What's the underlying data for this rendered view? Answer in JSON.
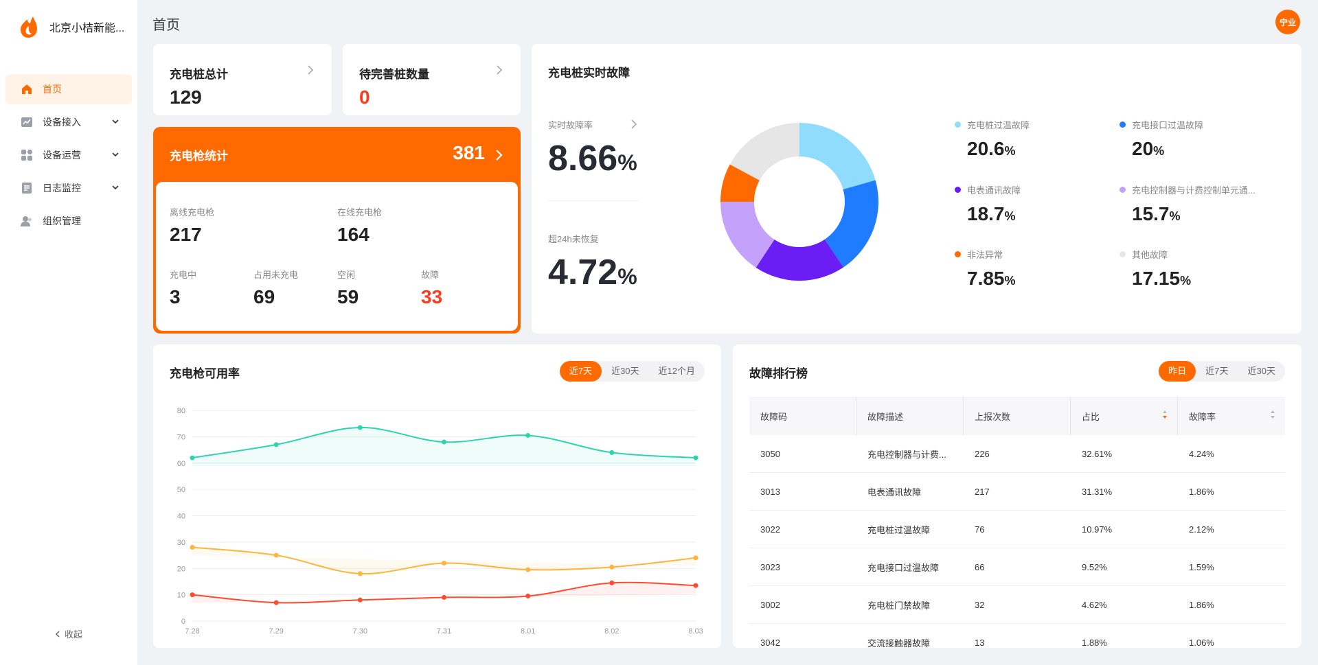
{
  "brand": {
    "name": "北京小桔新能..."
  },
  "sidebar": {
    "items": [
      {
        "label": "首页"
      },
      {
        "label": "设备接入"
      },
      {
        "label": "设备运营"
      },
      {
        "label": "日志监控"
      },
      {
        "label": "组织管理"
      }
    ],
    "collapse_label": "收起"
  },
  "header": {
    "title": "首页",
    "avatar_text": "宁业"
  },
  "pile_total": {
    "label": "充电桩总计",
    "value": "129"
  },
  "pending": {
    "label": "待完善桩数量",
    "value": "0"
  },
  "gun_stats": {
    "title": "充电枪统计",
    "total": "381",
    "offline_label": "离线充电枪",
    "offline_value": "217",
    "online_label": "在线充电枪",
    "online_value": "164",
    "charging_label": "充电中",
    "charging_value": "3",
    "occupied_label": "占用未充电",
    "occupied_value": "69",
    "idle_label": "空闲",
    "idle_value": "59",
    "fault_label": "故障",
    "fault_value": "33"
  },
  "realtime_fault": {
    "title": "充电桩实时故障",
    "rate_label": "实时故障率",
    "rate_value": "8.66",
    "rate_unit": "%",
    "unrecovered_label": "超24h未恢复",
    "unrecovered_value": "4.72",
    "unrecovered_unit": "%",
    "legend": [
      {
        "label": "充电桩过温故障",
        "value": "20.6",
        "unit": "%",
        "color": "#8fdcff"
      },
      {
        "label": "充电接口过温故障",
        "value": "20",
        "unit": "%",
        "color": "#1f7bff"
      },
      {
        "label": "电表通讯故障",
        "value": "18.7",
        "unit": "%",
        "color": "#6a1df5"
      },
      {
        "label": "充电控制器与计费控制单元通...",
        "value": "15.7",
        "unit": "%",
        "color": "#c4a2fb"
      },
      {
        "label": "非法异常",
        "value": "7.85",
        "unit": "%",
        "color": "#ff6a00"
      },
      {
        "label": "其他故障",
        "value": "17.15",
        "unit": "%",
        "color": "#e6e6e6"
      }
    ]
  },
  "availability": {
    "title": "充电枪可用率",
    "tabs": [
      "近7天",
      "近30天",
      "近12个月"
    ],
    "active_tab": 0
  },
  "chart_data": {
    "type": "line",
    "categories": [
      "7.28",
      "7.29",
      "7.30",
      "7.31",
      "8.01",
      "8.02",
      "8.03"
    ],
    "ylim": [
      0,
      80
    ],
    "yticks": [
      "0",
      "10",
      "20",
      "30",
      "40",
      "50",
      "60",
      "70",
      "80"
    ],
    "grid": true,
    "series": [
      {
        "values": [
          62,
          67,
          73.5,
          68,
          70.5,
          64,
          62
        ],
        "color": "#2ed3b0"
      },
      {
        "values": [
          28,
          25,
          18,
          22,
          19.5,
          20.5,
          24
        ],
        "color": "#ffb43a"
      },
      {
        "values": [
          10,
          7,
          8,
          9,
          9.5,
          14.5,
          13.5
        ],
        "color": "#ff4a2e"
      }
    ]
  },
  "ranking": {
    "title": "故障排行榜",
    "tabs": [
      "昨日",
      "近7天",
      "近30天"
    ],
    "active_tab": 0,
    "columns": [
      "故障码",
      "故障描述",
      "上报次数",
      "占比",
      "故障率"
    ],
    "rows": [
      [
        "3050",
        "充电控制器与计费...",
        "226",
        "32.61%",
        "4.24%"
      ],
      [
        "3013",
        "电表通讯故障",
        "217",
        "31.31%",
        "1.86%"
      ],
      [
        "3022",
        "充电桩过温故障",
        "76",
        "10.97%",
        "2.12%"
      ],
      [
        "3023",
        "充电接口过温故障",
        "66",
        "9.52%",
        "1.59%"
      ],
      [
        "3002",
        "充电桩门禁故障",
        "32",
        "4.62%",
        "1.86%"
      ],
      [
        "3042",
        "交流接触器故障",
        "13",
        "1.88%",
        "1.06%"
      ]
    ]
  }
}
